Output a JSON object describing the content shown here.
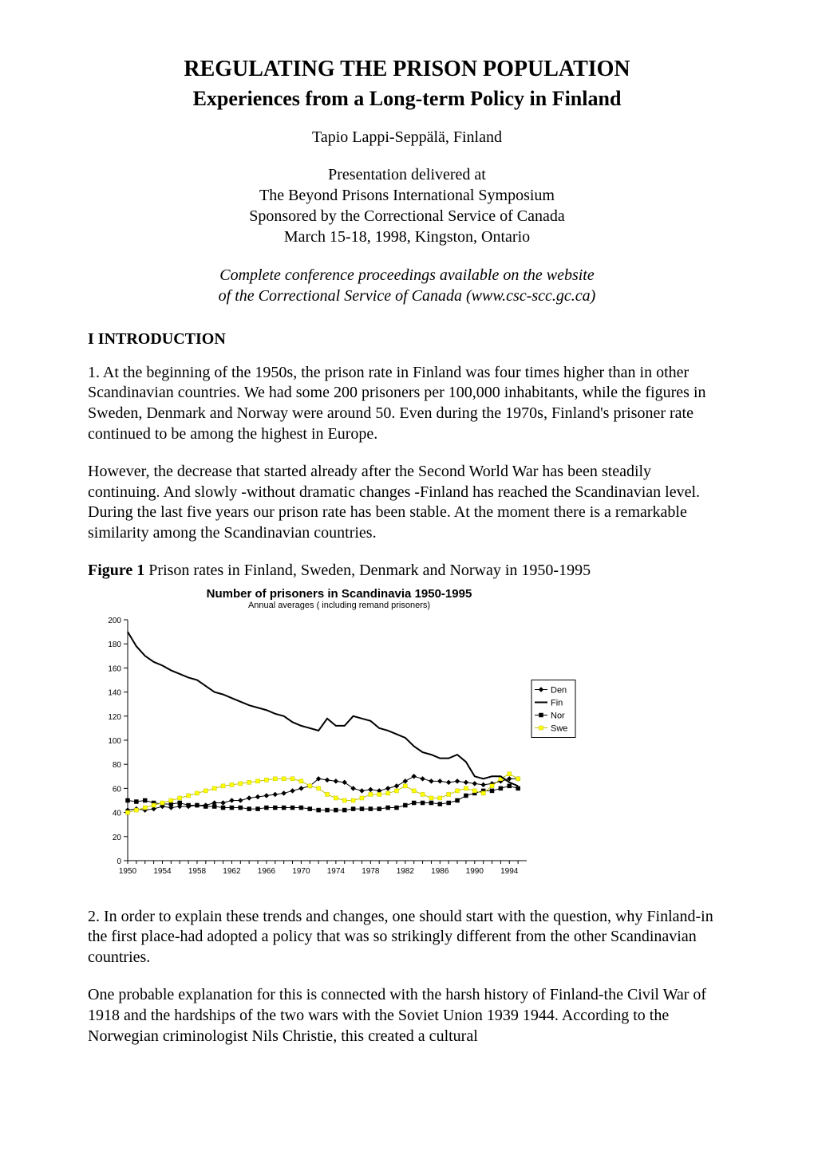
{
  "title_main": "REGULATING THE PRISON POPULATION",
  "title_sub": "Experiences from a Long-term Policy in Finland",
  "author": "Tapio Lappi-Seppälä, Finland",
  "pres": {
    "l1": "Presentation delivered at",
    "l2": "The Beyond Prisons International Symposium",
    "l3": "Sponsored by the Correctional Service of Canada",
    "l4": "March 15-18, 1998, Kingston, Ontario"
  },
  "italic": {
    "l1": "Complete conference proceedings available on the website",
    "l2": "of the Correctional Service of Canada (www.csc-scc.gc.ca)"
  },
  "section_head": "I INTRODUCTION",
  "para1": "1. At the beginning of the 1950s, the prison rate in Finland was four times higher than in other Scandinavian countries. We had some 200 prisoners per 100,000 inhabitants, while the figures in Sweden, Denmark and Norway were around 50. Even during the 1970s, Finland's prisoner rate continued to be among the highest in Europe.",
  "para2": "However, the decrease that started already after the Second World War has been steadily continuing. And slowly -without dramatic changes -Finland has reached the Scandinavian level. During the last five years our prison rate has been stable. At the moment there is a remarkable similarity among the Scandinavian countries.",
  "fig_caption_bold": "Figure 1",
  "fig_caption_rest": " Prison rates in Finland, Sweden, Denmark and Norway in 1950-1995",
  "chart": {
    "type": "line",
    "title": "Number of prisoners in Scandinavia 1950-1995",
    "subtitle": "Annual averages ( including remand prisoners)",
    "background_color": "#ffffff",
    "axis_color": "#000000",
    "xlim": [
      1950,
      1996
    ],
    "xtick_step": 4,
    "xticks": [
      1950,
      1954,
      1958,
      1962,
      1966,
      1970,
      1974,
      1978,
      1982,
      1986,
      1990,
      1994
    ],
    "ylim": [
      0,
      200
    ],
    "ytick_step": 20,
    "yticks": [
      0,
      20,
      40,
      60,
      80,
      100,
      120,
      140,
      160,
      180,
      200
    ],
    "label_fontsize": 10,
    "tick_fontsize": 10,
    "legend": {
      "entries": [
        "Den",
        "Fin",
        "Nor",
        "Swe"
      ],
      "box_stroke": "#000000",
      "box_fill": "#ffffff",
      "text_color": "#000000",
      "position": "right"
    },
    "series": {
      "Den": {
        "color": "#000000",
        "marker": "diamond",
        "marker_fill": "#000000",
        "line_width": 1,
        "years": [
          1950,
          1951,
          1952,
          1953,
          1954,
          1955,
          1956,
          1957,
          1958,
          1959,
          1960,
          1961,
          1962,
          1963,
          1964,
          1965,
          1966,
          1967,
          1968,
          1969,
          1970,
          1971,
          1972,
          1973,
          1974,
          1975,
          1976,
          1977,
          1978,
          1979,
          1980,
          1981,
          1982,
          1983,
          1984,
          1985,
          1986,
          1987,
          1988,
          1989,
          1990,
          1991,
          1992,
          1993,
          1994,
          1995
        ],
        "values": [
          42,
          43,
          42,
          43,
          45,
          44,
          45,
          45,
          46,
          46,
          48,
          48,
          50,
          50,
          52,
          53,
          54,
          55,
          56,
          58,
          60,
          62,
          68,
          67,
          66,
          65,
          60,
          58,
          59,
          58,
          60,
          62,
          66,
          70,
          68,
          66,
          66,
          65,
          66,
          65,
          64,
          63,
          64,
          66,
          68,
          68
        ]
      },
      "Fin": {
        "color": "#000000",
        "marker": "none",
        "line_width": 2,
        "years": [
          1950,
          1951,
          1952,
          1953,
          1954,
          1955,
          1956,
          1957,
          1958,
          1959,
          1960,
          1961,
          1962,
          1963,
          1964,
          1965,
          1966,
          1967,
          1968,
          1969,
          1970,
          1971,
          1972,
          1973,
          1974,
          1975,
          1976,
          1977,
          1978,
          1979,
          1980,
          1981,
          1982,
          1983,
          1984,
          1985,
          1986,
          1987,
          1988,
          1989,
          1990,
          1991,
          1992,
          1993,
          1994,
          1995
        ],
        "values": [
          190,
          178,
          170,
          165,
          162,
          158,
          155,
          152,
          150,
          145,
          140,
          138,
          135,
          132,
          129,
          127,
          125,
          122,
          120,
          115,
          112,
          110,
          108,
          118,
          112,
          112,
          120,
          118,
          116,
          110,
          108,
          105,
          102,
          95,
          90,
          88,
          85,
          85,
          88,
          82,
          70,
          68,
          70,
          70,
          65,
          62
        ]
      },
      "Nor": {
        "color": "#000000",
        "marker": "square",
        "marker_fill": "#000000",
        "line_width": 1,
        "years": [
          1950,
          1951,
          1952,
          1953,
          1954,
          1955,
          1956,
          1957,
          1958,
          1959,
          1960,
          1961,
          1962,
          1963,
          1964,
          1965,
          1966,
          1967,
          1968,
          1969,
          1970,
          1971,
          1972,
          1973,
          1974,
          1975,
          1976,
          1977,
          1978,
          1979,
          1980,
          1981,
          1982,
          1983,
          1984,
          1985,
          1986,
          1987,
          1988,
          1989,
          1990,
          1991,
          1992,
          1993,
          1994,
          1995
        ],
        "values": [
          50,
          49,
          50,
          48,
          47,
          47,
          48,
          46,
          46,
          45,
          45,
          44,
          44,
          44,
          43,
          43,
          44,
          44,
          44,
          44,
          44,
          43,
          42,
          42,
          42,
          42,
          43,
          43,
          43,
          43,
          44,
          44,
          46,
          48,
          48,
          48,
          47,
          48,
          50,
          54,
          56,
          58,
          58,
          60,
          62,
          60
        ]
      },
      "Swe": {
        "color": "#c0c000",
        "marker": "square",
        "marker_fill": "#ffff00",
        "line_width": 1,
        "years": [
          1950,
          1951,
          1952,
          1953,
          1954,
          1955,
          1956,
          1957,
          1958,
          1959,
          1960,
          1961,
          1962,
          1963,
          1964,
          1965,
          1966,
          1967,
          1968,
          1969,
          1970,
          1971,
          1972,
          1973,
          1974,
          1975,
          1976,
          1977,
          1978,
          1979,
          1980,
          1981,
          1982,
          1983,
          1984,
          1985,
          1986,
          1987,
          1988,
          1989,
          1990,
          1991,
          1992,
          1993,
          1994,
          1995
        ],
        "values": [
          40,
          42,
          44,
          46,
          48,
          50,
          52,
          54,
          56,
          58,
          60,
          62,
          63,
          64,
          65,
          66,
          67,
          68,
          68,
          68,
          66,
          62,
          60,
          55,
          52,
          50,
          50,
          52,
          55,
          55,
          56,
          58,
          62,
          58,
          55,
          52,
          52,
          55,
          58,
          60,
          58,
          56,
          62,
          68,
          72,
          68
        ]
      }
    }
  },
  "para3": "2. In order to explain these trends and changes, one should start with the question, why Finland-in the first place-had adopted a policy that was so strikingly different from the other Scandinavian countries.",
  "para4": "One probable explanation for this is connected with the harsh history of Finland-the Civil War of 1918 and the hardships of the two wars with the Soviet Union 1939 1944. According to the Norwegian criminologist Nils Christie, this created a cultural"
}
